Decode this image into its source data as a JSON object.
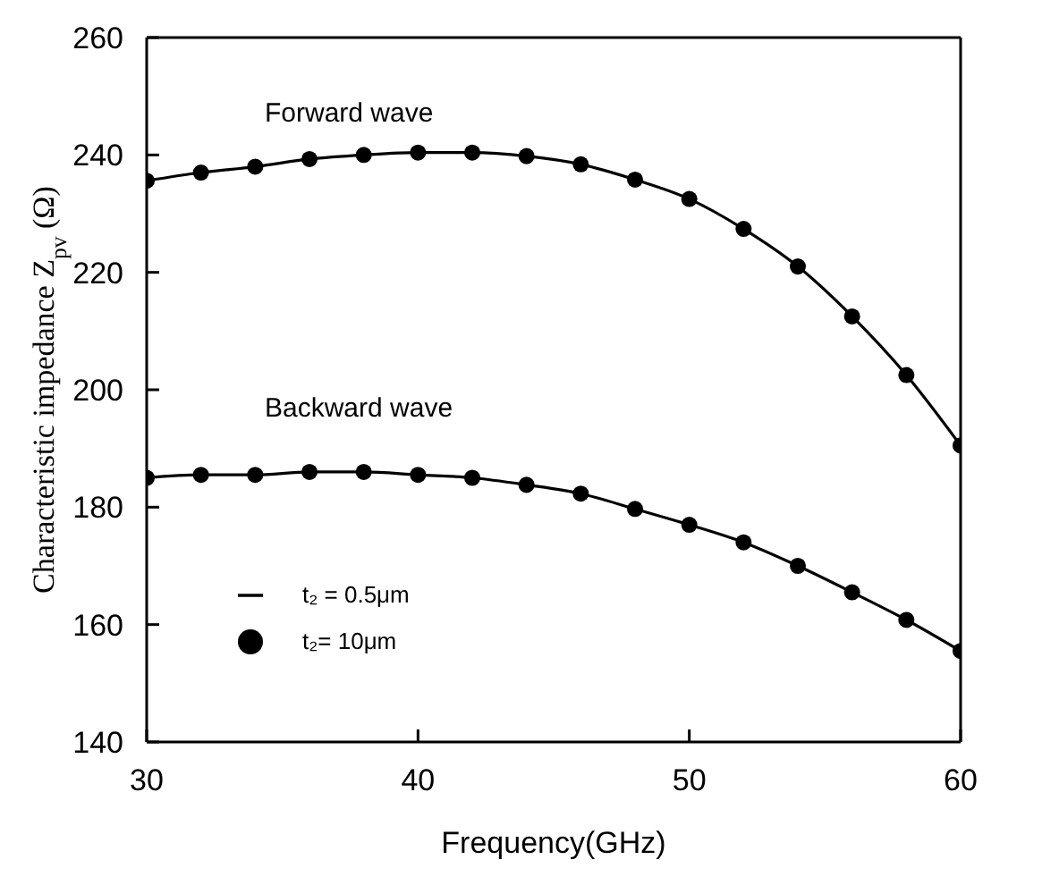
{
  "chart_data": {
    "type": "line",
    "xlabel": "Frequency(GHz)",
    "ylabel": "Characteristic impedance  Z$_{pv}$ (Ω)",
    "x": [
      30,
      32,
      34,
      36,
      38,
      40,
      42,
      44,
      46,
      48,
      50,
      52,
      54,
      56,
      58,
      60
    ],
    "series": [
      {
        "name": "t₂ = 0.5μm",
        "color": "#000000",
        "marker": "none",
        "values": [
          235.6,
          237,
          238,
          239.3,
          240,
          240.4,
          240.4,
          239.8,
          238.4,
          235.8,
          232.5,
          227.4,
          221,
          212.5,
          202.5,
          190.5
        ]
      },
      {
        "color": "#000000",
        "marker": "none",
        "values": [
          185,
          185.5,
          185.5,
          186,
          186,
          185.5,
          185,
          183.8,
          182.3,
          179.7,
          177,
          174,
          170,
          165.5,
          160.8,
          155.5
        ]
      },
      {
        "type": "scatter",
        "name": "t₂= 10μm",
        "color": "#000000",
        "marker": "circle",
        "values": [
          235.6,
          237,
          238,
          239.3,
          240,
          240.4,
          240.4,
          239.8,
          238.4,
          235.8,
          232.5,
          227.4,
          221,
          212.5,
          202.5,
          190.5
        ]
      },
      {
        "type": "scatter",
        "color": "#000000",
        "marker": "circle",
        "values": [
          185,
          185.5,
          185.5,
          186,
          186,
          185.5,
          185,
          183.8,
          182.3,
          179.7,
          177,
          174,
          170,
          165.5,
          160.8,
          155.5
        ]
      }
    ],
    "annotations": [
      "Forward wave",
      "Backward wave"
    ],
    "xlim": [
      30,
      60
    ],
    "xticks": [
      30,
      40,
      50,
      60
    ],
    "ylim": [
      140,
      260
    ],
    "yticks": [
      140,
      160,
      180,
      200,
      220,
      240,
      260
    ],
    "grid": false,
    "legend": "bottom left"
  }
}
